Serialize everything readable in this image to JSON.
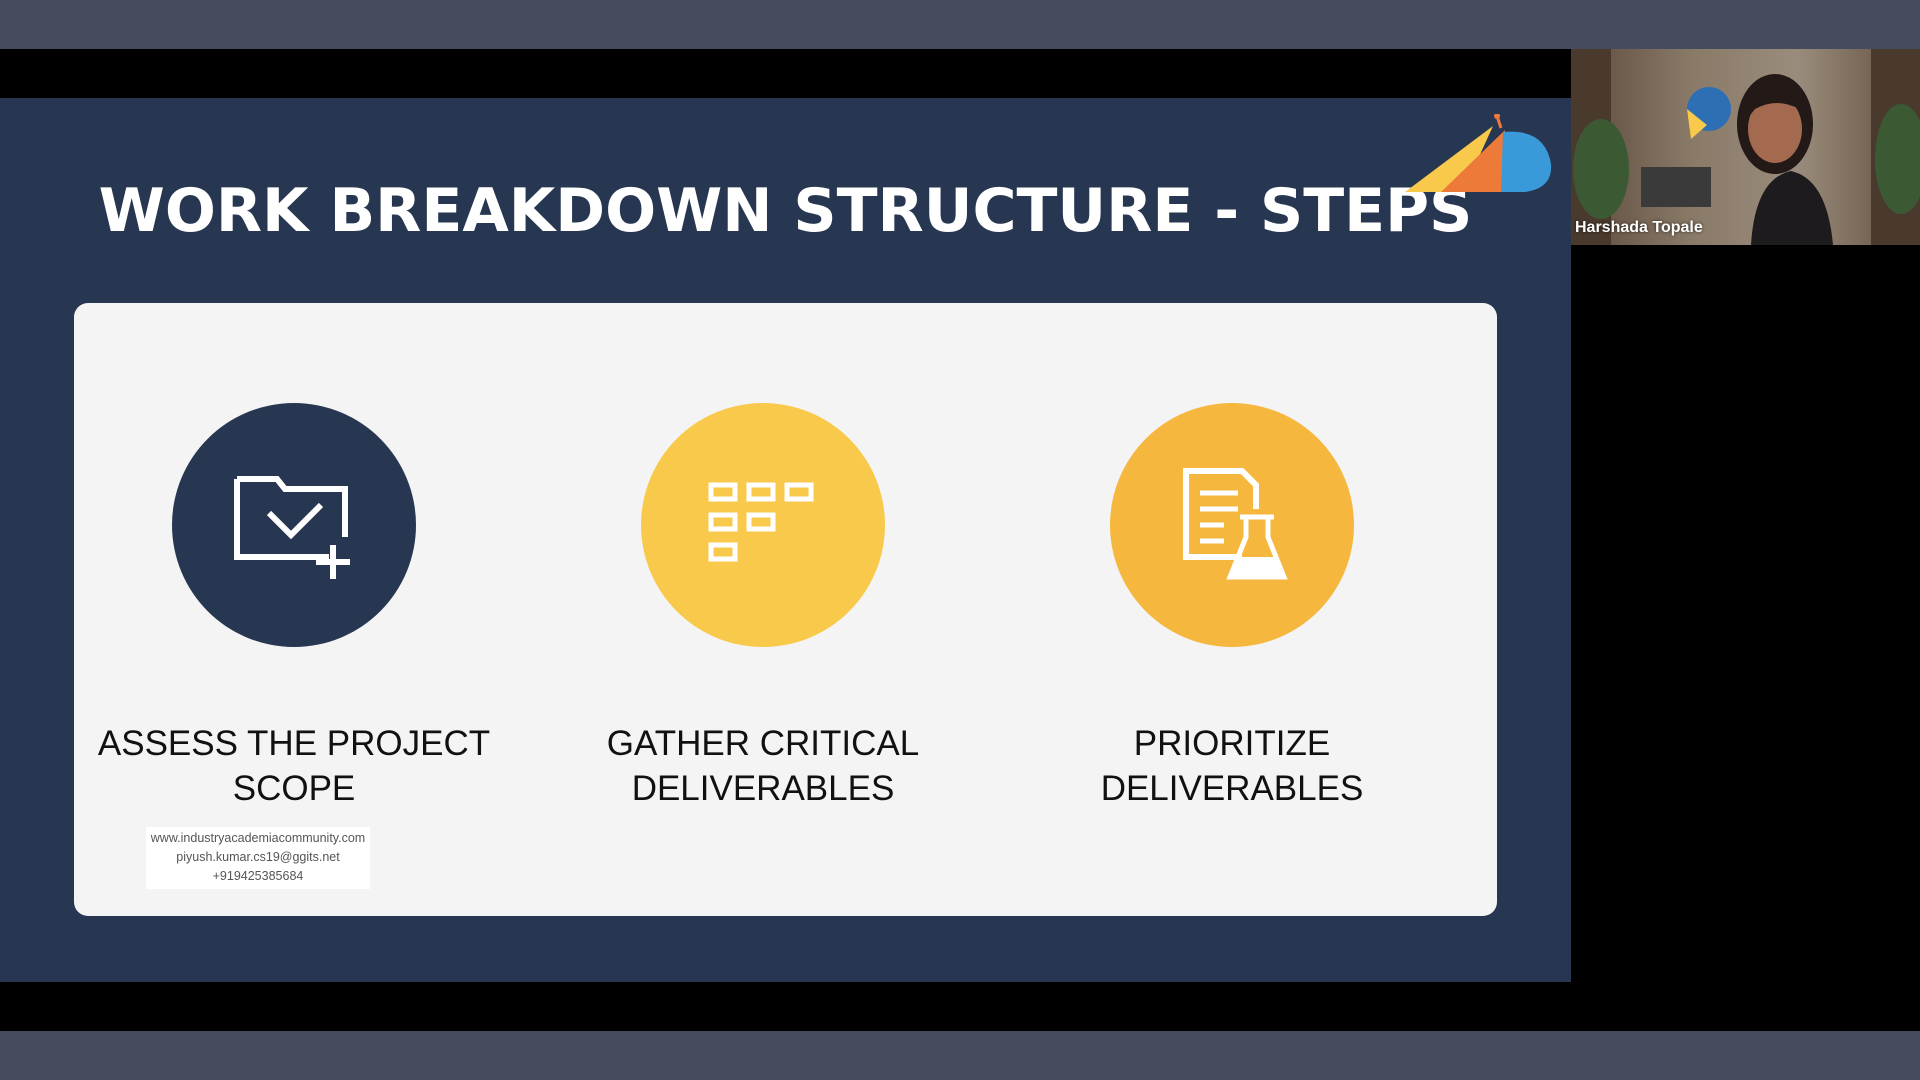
{
  "slide": {
    "title": "WORK BREAKDOWN STRUCTURE - STEPS",
    "steps": [
      {
        "label": "ASSESS THE PROJECT\nSCOPE",
        "icon": "folder-check-add-icon",
        "circle_color": "#273651"
      },
      {
        "label": "GATHER CRITICAL\nDELIVERABLES",
        "icon": "hierarchy-grid-icon",
        "circle_color": "#f8c94a"
      },
      {
        "label": "PRIORITIZE\nDELIVERABLES",
        "icon": "document-flask-icon",
        "circle_color": "#f6b73e"
      }
    ],
    "watermark": {
      "line1": "www.industryacademiacommunity.com",
      "line2": "piyush.kumar.cs19@ggits.net",
      "line3": "+919425385684"
    }
  },
  "participant": {
    "name": "Harshada Topale"
  },
  "colors": {
    "slide_background": "#273651",
    "card_background": "#f4f4f4",
    "toolbar": "#474c5c"
  }
}
